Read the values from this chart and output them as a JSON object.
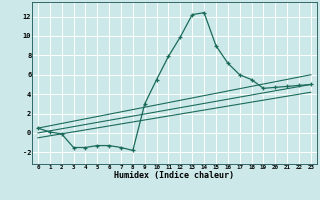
{
  "xlabel": "Humidex (Indice chaleur)",
  "bg_color": "#cce8e8",
  "line_color": "#1a6b5a",
  "grid_color": "#ffffff",
  "x_ticks": [
    0,
    1,
    2,
    3,
    4,
    5,
    6,
    7,
    8,
    9,
    10,
    11,
    12,
    13,
    14,
    15,
    16,
    17,
    18,
    19,
    20,
    21,
    22,
    23
  ],
  "y_ticks": [
    -2,
    0,
    2,
    4,
    6,
    8,
    10,
    12
  ],
  "ylim": [
    -3.2,
    13.5
  ],
  "xlim": [
    -0.5,
    23.5
  ],
  "main_series_x": [
    0,
    1,
    2,
    3,
    4,
    5,
    6,
    7,
    8,
    9,
    10,
    11,
    12,
    13,
    14,
    15,
    16,
    17,
    18,
    19,
    20,
    21,
    22,
    23
  ],
  "main_series_y": [
    0.5,
    0.1,
    -0.1,
    -1.5,
    -1.5,
    -1.3,
    -1.3,
    -1.5,
    -1.8,
    3.0,
    5.5,
    7.9,
    9.9,
    12.2,
    12.4,
    9.0,
    7.2,
    6.0,
    5.5,
    4.6,
    4.7,
    4.8,
    4.9,
    5.0
  ],
  "line1_x": [
    0,
    23
  ],
  "line1_y": [
    0.5,
    6.0
  ],
  "line2_x": [
    0,
    23
  ],
  "line2_y": [
    0.0,
    5.0
  ],
  "line3_x": [
    0,
    23
  ],
  "line3_y": [
    -0.5,
    4.2
  ]
}
